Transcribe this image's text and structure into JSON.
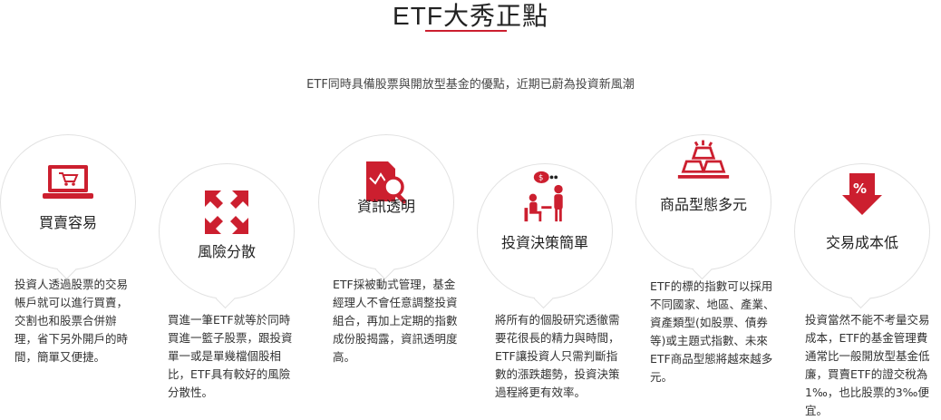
{
  "header": {
    "title_latin": "ETF",
    "title_cjk": "大秀正點",
    "subtitle": "ETF同時具備股票與開放型基金的優點，近期已蔚為投資新風潮"
  },
  "colors": {
    "accent": "#cc1f2f"
  },
  "features": [
    {
      "icon": "laptop-cart-icon",
      "label": "買賣容易",
      "desc": "投資人透過股票的交易帳戶就可以進行買賣，交割也和股票合併辦理，省下另外開戶的時間，簡單又便捷。"
    },
    {
      "icon": "scatter-arrows-icon",
      "label": "風險分散",
      "desc": "買進一筆ETF就等於同時買進一籃子股票，跟投資單一或是單幾檔個股相比，ETF具有較好的風險分散性。"
    },
    {
      "icon": "report-magnifier-icon",
      "label": "資訊透明",
      "desc": "ETF採被動式管理，基金經理人不會任意調整投資組合，再加上定期的指數成份股揭露，資訊透明度高。"
    },
    {
      "icon": "consultation-icon",
      "label": "投資決策簡單",
      "desc": "將所有的個股研究透徹需要花很長的精力與時間，ETF讓投資人只需判斷指數的漲跌趨勢，投資決策過程將更有效率。"
    },
    {
      "icon": "gold-bars-icon",
      "label": "商品型態多元",
      "desc": "ETF的標的指數可以採用不同國家、地區、產業、資產類型(如股票、債券等)或主題式指數、未來ETF商品型態將越來越多元。"
    },
    {
      "icon": "percent-down-icon",
      "label": "交易成本低",
      "desc": "投資當然不能不考量交易成本，ETF的基金管理費通常比一般開放型基金低廉，買賣ETF的證交稅為1‰，也比股票的3‰便宜。"
    }
  ]
}
